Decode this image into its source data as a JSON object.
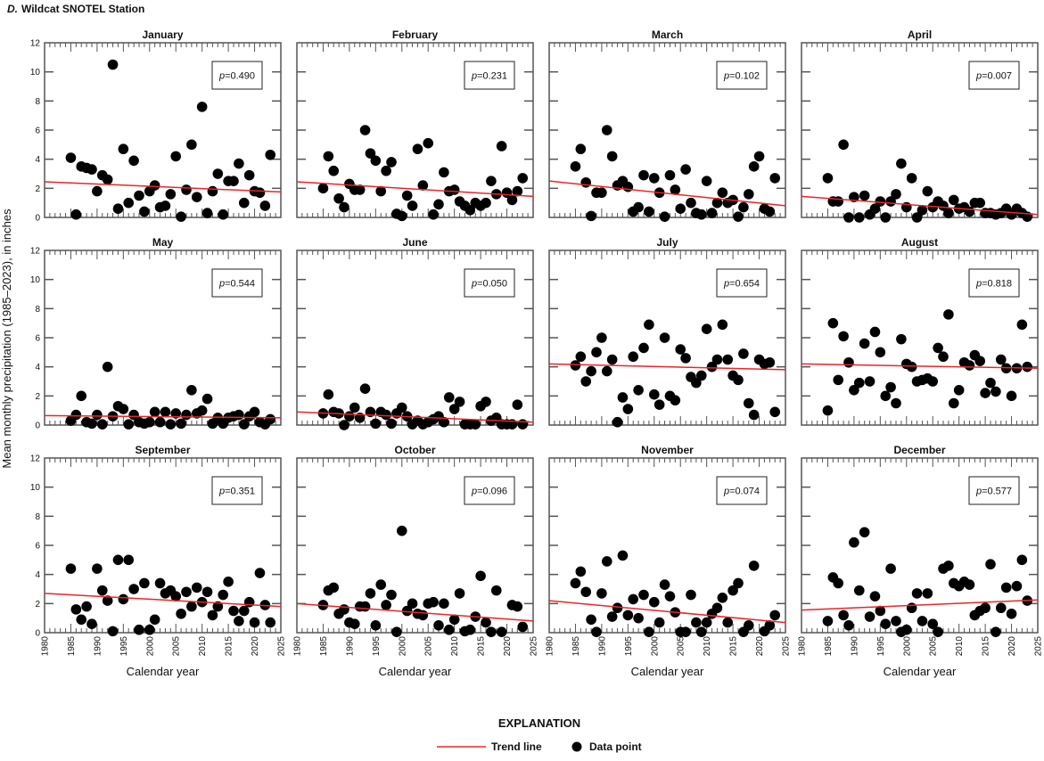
{
  "figure": {
    "panel_letter": "D.",
    "title": "Wildcat SNOTEL Station"
  },
  "explanation": {
    "heading": "EXPLANATION",
    "trend_label": "Trend line",
    "point_label": "Data point"
  },
  "colors": {
    "trend": "#e8262a",
    "point": "#000000",
    "axis": "#555555"
  },
  "chart_data": {
    "type": "scatter",
    "ylabel": "Mean monthly precipitation (1985–2023), in inches",
    "xlabel": "Calendar year",
    "xlim": [
      1980,
      2025
    ],
    "ylim": [
      0,
      12
    ],
    "xticks": [
      "1980",
      "1985",
      "1990",
      "1995",
      "2000",
      "2005",
      "2010",
      "2015",
      "2020",
      "2025"
    ],
    "yticks": [
      "0",
      "2",
      "4",
      "6",
      "8",
      "10",
      "12"
    ],
    "p_prefix": "p",
    "years_start": 1985,
    "panels": [
      {
        "month": "January",
        "p": "=0.490",
        "trend": [
          2.45,
          1.75
        ],
        "values": [
          4.1,
          0.2,
          3.5,
          3.4,
          3.3,
          1.8,
          2.9,
          2.6,
          10.5,
          0.6,
          4.7,
          1.0,
          3.9,
          1.5,
          0.4,
          1.8,
          2.2,
          0.7,
          0.8,
          1.6,
          4.2,
          0.05,
          1.9,
          5.0,
          1.4,
          7.6,
          0.3,
          1.8,
          3.0,
          0.2,
          2.5,
          2.5,
          3.7,
          1.0,
          2.9,
          1.8,
          1.7,
          0.8,
          4.3
        ]
      },
      {
        "month": "February",
        "p": "=0.231",
        "trend": [
          2.45,
          1.45
        ],
        "values": [
          2.0,
          4.2,
          3.2,
          1.3,
          0.7,
          2.3,
          1.9,
          1.9,
          6.0,
          4.4,
          3.9,
          1.8,
          3.2,
          3.8,
          0.25,
          0.1,
          1.5,
          0.8,
          4.7,
          2.2,
          5.1,
          0.2,
          0.9,
          3.1,
          1.8,
          1.9,
          1.1,
          0.8,
          0.5,
          1.0,
          0.8,
          1.0,
          2.5,
          1.6,
          4.9,
          1.7,
          1.2,
          1.8,
          2.7
        ]
      },
      {
        "month": "March",
        "p": "=0.102",
        "trend": [
          2.5,
          0.8
        ],
        "values": [
          3.5,
          4.7,
          2.4,
          0.1,
          1.7,
          1.7,
          6.0,
          4.2,
          2.2,
          2.5,
          2.1,
          0.4,
          0.7,
          2.9,
          0.4,
          2.7,
          1.7,
          0.05,
          2.9,
          1.9,
          0.6,
          3.3,
          1.0,
          0.3,
          0.2,
          2.5,
          0.3,
          1.0,
          1.7,
          1.0,
          1.2,
          0.05,
          0.7,
          1.6,
          3.5,
          4.2,
          0.6,
          0.4,
          2.7
        ]
      },
      {
        "month": "April",
        "p": "=0.007",
        "trend": [
          1.45,
          0.2
        ],
        "values": [
          2.7,
          1.1,
          1.1,
          5.0,
          0.0,
          1.4,
          0.0,
          1.5,
          0.2,
          0.6,
          1.1,
          0.0,
          1.1,
          1.6,
          3.7,
          0.7,
          2.7,
          0.0,
          0.5,
          1.8,
          0.7,
          1.1,
          0.8,
          0.3,
          1.2,
          0.6,
          0.7,
          0.4,
          1.0,
          1.0,
          0.3,
          0.3,
          0.2,
          0.3,
          0.6,
          0.2,
          0.6,
          0.3,
          0.05
        ]
      },
      {
        "month": "May",
        "p": "=0.544",
        "trend": [
          0.65,
          0.5
        ],
        "values": [
          0.3,
          0.7,
          2.0,
          0.2,
          0.1,
          0.7,
          0.05,
          4.0,
          0.6,
          1.3,
          1.1,
          0.05,
          0.7,
          0.2,
          0.1,
          0.2,
          0.9,
          0.2,
          0.9,
          0.05,
          0.8,
          0.1,
          0.7,
          2.4,
          0.8,
          1.0,
          1.8,
          0.1,
          0.5,
          0.1,
          0.5,
          0.6,
          0.7,
          0.05,
          0.6,
          0.9,
          0.2,
          0.05,
          0.4
        ]
      },
      {
        "month": "June",
        "p": "=0.050",
        "trend": [
          0.9,
          0.2
        ],
        "values": [
          0.8,
          2.1,
          0.9,
          0.8,
          0.0,
          0.6,
          1.2,
          0.5,
          2.5,
          0.9,
          0.1,
          0.9,
          0.7,
          0.1,
          0.8,
          1.2,
          0.6,
          0.05,
          0.3,
          0.05,
          0.2,
          0.4,
          0.6,
          0.2,
          1.9,
          1.1,
          1.6,
          0.05,
          0.05,
          0.05,
          1.3,
          1.6,
          0.3,
          0.5,
          0.05,
          0.05,
          0.05,
          1.4,
          0.05
        ]
      },
      {
        "month": "July",
        "p": "=0.654",
        "trend": [
          4.2,
          3.8
        ],
        "values": [
          4.1,
          4.7,
          3.0,
          3.7,
          5.0,
          6.0,
          3.7,
          4.5,
          0.2,
          1.9,
          1.1,
          4.7,
          2.4,
          5.3,
          6.9,
          2.1,
          1.4,
          6.0,
          2.0,
          1.7,
          5.2,
          4.6,
          3.3,
          2.9,
          3.4,
          6.6,
          4.0,
          4.5,
          6.9,
          4.5,
          3.4,
          3.1,
          4.9,
          1.5,
          0.7,
          4.5,
          4.2,
          4.3,
          0.9
        ]
      },
      {
        "month": "August",
        "p": "=0.818",
        "trend": [
          4.2,
          3.9
        ],
        "values": [
          1.0,
          7.0,
          3.1,
          6.1,
          4.3,
          2.4,
          2.9,
          5.6,
          3.0,
          6.4,
          5.0,
          2.0,
          2.6,
          1.5,
          5.9,
          4.2,
          4.0,
          3.0,
          3.1,
          3.2,
          3.0,
          5.3,
          4.7,
          7.6,
          1.5,
          2.4,
          4.3,
          4.1,
          4.8,
          4.4,
          2.2,
          2.9,
          2.3,
          4.5,
          3.9,
          2.0,
          3.9,
          6.9,
          4.0
        ]
      },
      {
        "month": "September",
        "p": "=0.351",
        "trend": [
          2.7,
          1.8
        ],
        "values": [
          4.4,
          1.6,
          0.9,
          1.8,
          0.6,
          4.4,
          2.9,
          2.2,
          0.1,
          5.0,
          2.3,
          5.0,
          3.0,
          0.2,
          3.4,
          0.2,
          0.9,
          3.4,
          2.7,
          2.9,
          2.5,
          1.3,
          2.8,
          1.8,
          3.1,
          2.1,
          2.8,
          1.2,
          1.8,
          2.6,
          3.5,
          1.5,
          0.8,
          1.5,
          2.1,
          0.7,
          4.1,
          1.9,
          0.7
        ]
      },
      {
        "month": "October",
        "p": "=0.096",
        "trend": [
          2.0,
          0.8
        ],
        "values": [
          1.9,
          2.9,
          3.1,
          1.3,
          1.6,
          0.7,
          0.6,
          1.8,
          1.8,
          2.7,
          0.5,
          3.3,
          1.9,
          2.6,
          0.05,
          7.0,
          1.5,
          2.0,
          1.3,
          1.2,
          2.0,
          2.1,
          0.5,
          2.0,
          0.2,
          0.9,
          2.7,
          0.1,
          0.2,
          1.1,
          3.9,
          0.7,
          0.05,
          2.9,
          0.05,
          null,
          1.9,
          1.8,
          0.4
        ]
      },
      {
        "month": "November",
        "p": "=0.074",
        "trend": [
          2.2,
          0.7
        ],
        "values": [
          3.4,
          4.2,
          2.8,
          0.9,
          0.05,
          2.7,
          4.9,
          1.1,
          1.7,
          5.3,
          1.2,
          2.3,
          1.0,
          2.6,
          0.05,
          2.1,
          0.7,
          3.3,
          2.5,
          1.4,
          0.05,
          0.05,
          2.6,
          0.7,
          0.05,
          0.7,
          1.3,
          1.7,
          2.4,
          0.7,
          2.9,
          3.4,
          0.05,
          0.5,
          4.6,
          null,
          0.1,
          0.5,
          1.2
        ]
      },
      {
        "month": "December",
        "p": "=0.577",
        "trend": [
          1.55,
          2.25
        ],
        "values": [
          0.8,
          3.8,
          3.4,
          1.2,
          0.5,
          6.2,
          2.9,
          6.9,
          1.1,
          2.5,
          1.5,
          0.6,
          4.4,
          0.8,
          0.05,
          0.2,
          1.7,
          2.7,
          0.8,
          2.7,
          0.6,
          0.05,
          4.4,
          4.6,
          3.4,
          3.2,
          3.5,
          3.3,
          1.2,
          1.5,
          1.7,
          4.7,
          0.05,
          1.7,
          3.1,
          1.3,
          3.2,
          5.0,
          2.2
        ]
      }
    ]
  }
}
